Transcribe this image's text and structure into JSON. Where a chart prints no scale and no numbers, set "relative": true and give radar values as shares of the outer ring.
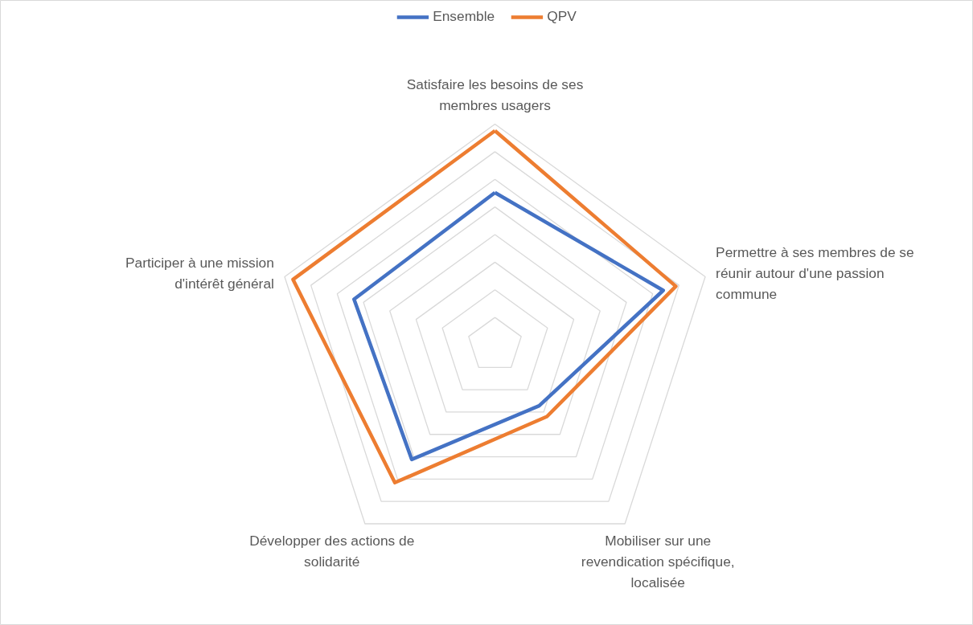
{
  "chart_data": {
    "type": "radar",
    "relative": true,
    "grid": true,
    "legend": "top",
    "line_style": "solid",
    "categories": [
      "Satisfaire les besoins de ses membres usagers",
      "Permettre à ses membres de se réunir autour d'une passion commune",
      "Mobiliser sur une revendication spécifique, localisée",
      "Développer des actions de solidarité",
      "Participer à une mission d'intérêt général"
    ],
    "series": [
      {
        "name": "Ensemble",
        "color": "#4472c4",
        "values": [
          0.69,
          0.8,
          0.34,
          0.64,
          0.67
        ]
      },
      {
        "name": "QPV",
        "color": "#ed7d31",
        "values": [
          0.97,
          0.86,
          0.4,
          0.77,
          0.96
        ]
      }
    ]
  }
}
